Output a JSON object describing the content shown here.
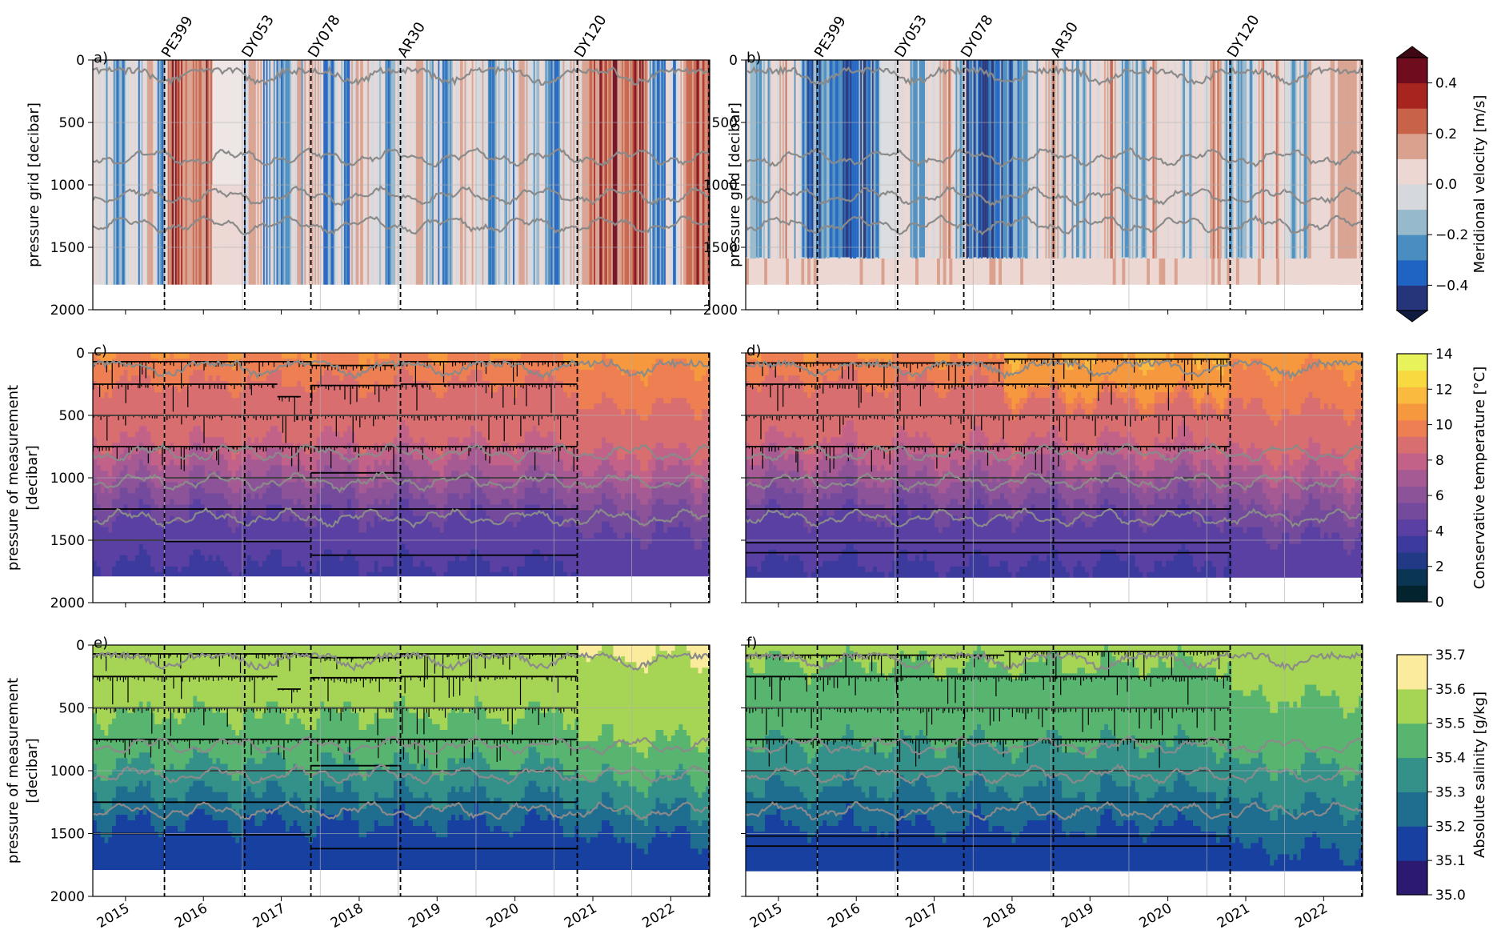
{
  "chart_data": {
    "type": "heatmap",
    "shared": {
      "x_ticks": [
        "2015",
        "2016",
        "2017",
        "2018",
        "2019",
        "2020",
        "2021",
        "2022"
      ],
      "x_range": [
        2014.58,
        2022.5
      ],
      "cruises": [
        {
          "name": "PE399",
          "time": 2015.5
        },
        {
          "name": "DY053",
          "time": 2016.53
        },
        {
          "name": "DY078",
          "time": 2017.38
        },
        {
          "name": "AR30",
          "time": 2018.53
        },
        {
          "name": "DY120",
          "time": 2020.8
        }
      ],
      "gray_isolines": [
        "isotherm levels overlaid in gray"
      ]
    },
    "panels": [
      {
        "id": "a",
        "label": "a)",
        "row": 0,
        "col": 0,
        "ylabel": [
          "pressure grid [decibar]"
        ],
        "y_ticks": [
          "0",
          "500",
          "1000",
          "1500",
          "2000"
        ],
        "ylim": [
          2000,
          0
        ],
        "variable": "velocity",
        "grid_depth": 1800
      },
      {
        "id": "b",
        "label": "b)",
        "row": 0,
        "col": 1,
        "ylabel": [
          "pressure grid [decibar]"
        ],
        "y_ticks": [
          "0",
          "500",
          "1000",
          "1500",
          "2000"
        ],
        "ylim": [
          2000,
          0
        ],
        "variable": "velocity",
        "grid_depth": 1800
      },
      {
        "id": "c",
        "label": "c)",
        "row": 1,
        "col": 0,
        "ylabel": [
          "pressure of measurement",
          "[decibar]"
        ],
        "y_ticks": [
          "0",
          "500",
          "1000",
          "1500",
          "2000"
        ],
        "ylim": [
          2000,
          0
        ],
        "variable": "temperature",
        "grid_depth": 1790,
        "instruments": [
          {
            "segments": [
              [
                2014.58,
                2016.53,
                70
              ],
              [
                2016.53,
                2017.38,
                70
              ],
              [
                2017.38,
                2018.53,
                100
              ],
              [
                2018.53,
                2020.8,
                70
              ]
            ]
          },
          {
            "segments": [
              [
                2014.58,
                2016.53,
                250
              ],
              [
                2016.53,
                2016.95,
                250
              ],
              [
                2016.95,
                2017.25,
                350
              ],
              [
                2017.38,
                2018.53,
                260
              ],
              [
                2018.53,
                2020.8,
                250
              ]
            ]
          },
          {
            "segments": [
              [
                2014.58,
                2020.8,
                500
              ]
            ]
          },
          {
            "segments": [
              [
                2014.58,
                2020.8,
                750
              ]
            ]
          },
          {
            "segments": [
              [
                2015.5,
                2020.8,
                1000
              ]
            ]
          },
          {
            "segments": [
              [
                2017.38,
                2018.53,
                960
              ]
            ]
          },
          {
            "segments": [
              [
                2014.58,
                2020.8,
                1250
              ]
            ]
          },
          {
            "segments": [
              [
                2014.58,
                2015.5,
                1500
              ],
              [
                2015.5,
                2017.38,
                1510
              ],
              [
                2017.38,
                2020.8,
                1620
              ]
            ]
          }
        ]
      },
      {
        "id": "d",
        "label": "d)",
        "row": 1,
        "col": 1,
        "ylabel": [],
        "y_ticks": [],
        "ylim": [
          2000,
          0
        ],
        "variable": "temperature",
        "grid_depth": 1800,
        "instruments": [
          {
            "segments": [
              [
                2014.58,
                2017.9,
                80
              ],
              [
                2017.9,
                2020.8,
                50
              ]
            ]
          },
          {
            "segments": [
              [
                2014.58,
                2020.8,
                250
              ]
            ]
          },
          {
            "segments": [
              [
                2014.58,
                2020.8,
                500
              ]
            ]
          },
          {
            "segments": [
              [
                2014.58,
                2020.8,
                750
              ]
            ]
          },
          {
            "segments": [
              [
                2014.58,
                2020.8,
                1000
              ]
            ]
          },
          {
            "segments": [
              [
                2014.58,
                2020.8,
                1250
              ]
            ]
          },
          {
            "segments": [
              [
                2014.58,
                2020.8,
                1520
              ]
            ]
          },
          {
            "segments": [
              [
                2014.58,
                2020.8,
                1600
              ]
            ]
          }
        ]
      },
      {
        "id": "e",
        "label": "e)",
        "row": 2,
        "col": 0,
        "ylabel": [
          "pressure of measurement",
          "[decibar]"
        ],
        "y_ticks": [
          "0",
          "500",
          "1000",
          "1500",
          "2000"
        ],
        "ylim": [
          2000,
          0
        ],
        "variable": "salinity",
        "grid_depth": 1790,
        "instruments": "same as panel c"
      },
      {
        "id": "f",
        "label": "f)",
        "row": 2,
        "col": 1,
        "ylabel": [],
        "y_ticks": [],
        "ylim": [
          2000,
          0
        ],
        "variable": "salinity",
        "grid_depth": 1800,
        "instruments": "same as panel d"
      }
    ],
    "colorbars": [
      {
        "variable": "velocity",
        "label": "Meridional velocity [m/s]",
        "ticks": [
          "0.4",
          "0.2",
          "0.0",
          "−0.2",
          "−0.4"
        ],
        "tick_values": [
          0.4,
          0.2,
          0.0,
          -0.2,
          -0.4
        ],
        "range": [
          -0.5,
          0.5
        ],
        "extend": "both",
        "colors": [
          "#26357a",
          "#1f64c2",
          "#4a8dc0",
          "#97b9cc",
          "#d5d9dd",
          "#ecd7d2",
          "#d9a18e",
          "#c8634a",
          "#a8251f",
          "#6f0d1f"
        ],
        "extend_colors": [
          "#101c3f",
          "#3f0712"
        ]
      },
      {
        "variable": "temperature",
        "label": "Conservative temperature [°C]",
        "ticks": [
          "14",
          "12",
          "10",
          "8",
          "6",
          "4",
          "2",
          "0"
        ],
        "tick_values": [
          14,
          12,
          10,
          8,
          6,
          4,
          2,
          0
        ],
        "range": [
          0,
          14
        ],
        "colors": [
          "#03232e",
          "#0a3553",
          "#223a86",
          "#3d3a9e",
          "#5a40a3",
          "#744a9c",
          "#8c5398",
          "#a65a93",
          "#c36288",
          "#d86e6f",
          "#ee7f52",
          "#f6983e",
          "#fab93f",
          "#f8d93f",
          "#e8f35c"
        ]
      },
      {
        "variable": "salinity",
        "label": "Absolute salinity [g/kg]",
        "ticks": [
          "35.7",
          "35.6",
          "35.5",
          "35.4",
          "35.3",
          "35.2",
          "35.1",
          "35.0"
        ],
        "tick_values": [
          35.7,
          35.6,
          35.5,
          35.4,
          35.3,
          35.2,
          35.1,
          35.0
        ],
        "range": [
          35.0,
          35.7
        ],
        "colors": [
          "#2b1a6f",
          "#1840a0",
          "#1f6d8f",
          "#33918a",
          "#58b570",
          "#a6d455",
          "#fbeb9d"
        ]
      }
    ]
  }
}
